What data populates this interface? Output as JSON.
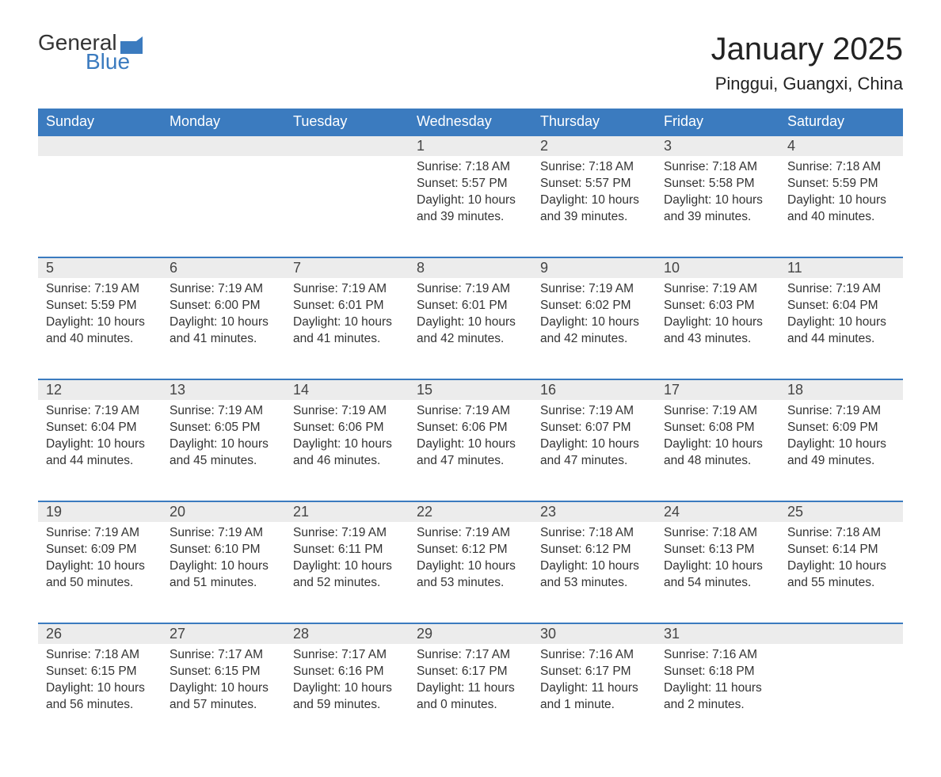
{
  "brand": {
    "part1": "General",
    "part2": "Blue"
  },
  "title": "January 2025",
  "location": "Pinggui, Guangxi, China",
  "colors": {
    "header_bg": "#3b7bbf",
    "header_text": "#ffffff",
    "daynum_bg": "#ececec",
    "row_border": "#3b7bbf",
    "body_text": "#333333",
    "brand_accent": "#3b7bbf"
  },
  "day_labels": [
    "Sunday",
    "Monday",
    "Tuesday",
    "Wednesday",
    "Thursday",
    "Friday",
    "Saturday"
  ],
  "weeks": [
    [
      null,
      null,
      null,
      {
        "n": "1",
        "sunrise": "7:18 AM",
        "sunset": "5:57 PM",
        "daylight": "10 hours and 39 minutes."
      },
      {
        "n": "2",
        "sunrise": "7:18 AM",
        "sunset": "5:57 PM",
        "daylight": "10 hours and 39 minutes."
      },
      {
        "n": "3",
        "sunrise": "7:18 AM",
        "sunset": "5:58 PM",
        "daylight": "10 hours and 39 minutes."
      },
      {
        "n": "4",
        "sunrise": "7:18 AM",
        "sunset": "5:59 PM",
        "daylight": "10 hours and 40 minutes."
      }
    ],
    [
      {
        "n": "5",
        "sunrise": "7:19 AM",
        "sunset": "5:59 PM",
        "daylight": "10 hours and 40 minutes."
      },
      {
        "n": "6",
        "sunrise": "7:19 AM",
        "sunset": "6:00 PM",
        "daylight": "10 hours and 41 minutes."
      },
      {
        "n": "7",
        "sunrise": "7:19 AM",
        "sunset": "6:01 PM",
        "daylight": "10 hours and 41 minutes."
      },
      {
        "n": "8",
        "sunrise": "7:19 AM",
        "sunset": "6:01 PM",
        "daylight": "10 hours and 42 minutes."
      },
      {
        "n": "9",
        "sunrise": "7:19 AM",
        "sunset": "6:02 PM",
        "daylight": "10 hours and 42 minutes."
      },
      {
        "n": "10",
        "sunrise": "7:19 AM",
        "sunset": "6:03 PM",
        "daylight": "10 hours and 43 minutes."
      },
      {
        "n": "11",
        "sunrise": "7:19 AM",
        "sunset": "6:04 PM",
        "daylight": "10 hours and 44 minutes."
      }
    ],
    [
      {
        "n": "12",
        "sunrise": "7:19 AM",
        "sunset": "6:04 PM",
        "daylight": "10 hours and 44 minutes."
      },
      {
        "n": "13",
        "sunrise": "7:19 AM",
        "sunset": "6:05 PM",
        "daylight": "10 hours and 45 minutes."
      },
      {
        "n": "14",
        "sunrise": "7:19 AM",
        "sunset": "6:06 PM",
        "daylight": "10 hours and 46 minutes."
      },
      {
        "n": "15",
        "sunrise": "7:19 AM",
        "sunset": "6:06 PM",
        "daylight": "10 hours and 47 minutes."
      },
      {
        "n": "16",
        "sunrise": "7:19 AM",
        "sunset": "6:07 PM",
        "daylight": "10 hours and 47 minutes."
      },
      {
        "n": "17",
        "sunrise": "7:19 AM",
        "sunset": "6:08 PM",
        "daylight": "10 hours and 48 minutes."
      },
      {
        "n": "18",
        "sunrise": "7:19 AM",
        "sunset": "6:09 PM",
        "daylight": "10 hours and 49 minutes."
      }
    ],
    [
      {
        "n": "19",
        "sunrise": "7:19 AM",
        "sunset": "6:09 PM",
        "daylight": "10 hours and 50 minutes."
      },
      {
        "n": "20",
        "sunrise": "7:19 AM",
        "sunset": "6:10 PM",
        "daylight": "10 hours and 51 minutes."
      },
      {
        "n": "21",
        "sunrise": "7:19 AM",
        "sunset": "6:11 PM",
        "daylight": "10 hours and 52 minutes."
      },
      {
        "n": "22",
        "sunrise": "7:19 AM",
        "sunset": "6:12 PM",
        "daylight": "10 hours and 53 minutes."
      },
      {
        "n": "23",
        "sunrise": "7:18 AM",
        "sunset": "6:12 PM",
        "daylight": "10 hours and 53 minutes."
      },
      {
        "n": "24",
        "sunrise": "7:18 AM",
        "sunset": "6:13 PM",
        "daylight": "10 hours and 54 minutes."
      },
      {
        "n": "25",
        "sunrise": "7:18 AM",
        "sunset": "6:14 PM",
        "daylight": "10 hours and 55 minutes."
      }
    ],
    [
      {
        "n": "26",
        "sunrise": "7:18 AM",
        "sunset": "6:15 PM",
        "daylight": "10 hours and 56 minutes."
      },
      {
        "n": "27",
        "sunrise": "7:17 AM",
        "sunset": "6:15 PM",
        "daylight": "10 hours and 57 minutes."
      },
      {
        "n": "28",
        "sunrise": "7:17 AM",
        "sunset": "6:16 PM",
        "daylight": "10 hours and 59 minutes."
      },
      {
        "n": "29",
        "sunrise": "7:17 AM",
        "sunset": "6:17 PM",
        "daylight": "11 hours and 0 minutes."
      },
      {
        "n": "30",
        "sunrise": "7:16 AM",
        "sunset": "6:17 PM",
        "daylight": "11 hours and 1 minute."
      },
      {
        "n": "31",
        "sunrise": "7:16 AM",
        "sunset": "6:18 PM",
        "daylight": "11 hours and 2 minutes."
      },
      null
    ]
  ],
  "labels": {
    "sunrise": "Sunrise:",
    "sunset": "Sunset:",
    "daylight": "Daylight:"
  }
}
